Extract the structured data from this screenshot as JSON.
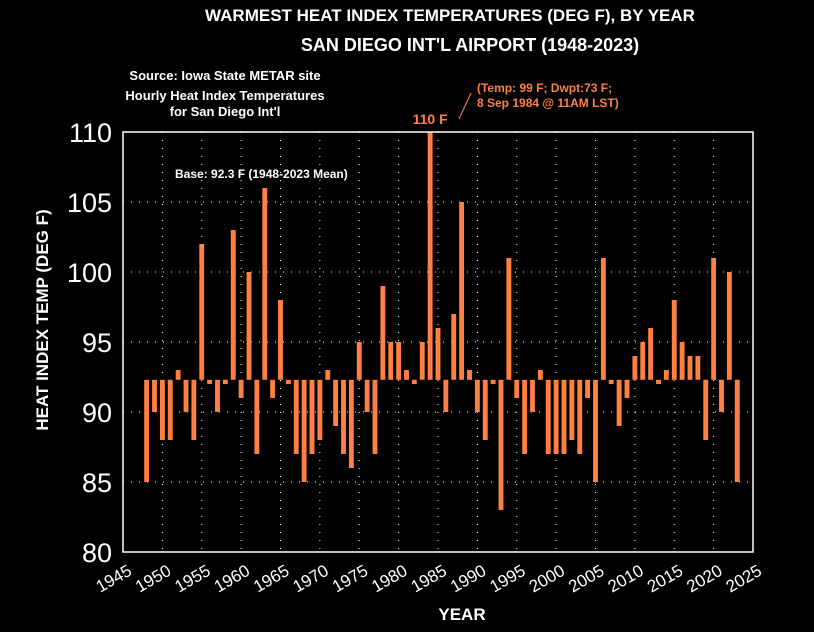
{
  "chart_data": {
    "type": "bar",
    "title": "WARMEST HEAT INDEX TEMPERATURES (DEG F), BY YEAR",
    "subtitle": "SAN DIEGO INT'L AIRPORT (1948-2023)",
    "source_lines": [
      "Source: Iowa State METAR site",
      "Hourly Heat Index Temperatures",
      "for San Diego Int'l"
    ],
    "xlabel": "YEAR",
    "ylabel": "HEAT INDEX TEMP (DEG F)",
    "xlim": [
      1945,
      2025
    ],
    "ylim": [
      80,
      110
    ],
    "xticks": [
      1945,
      1950,
      1955,
      1960,
      1965,
      1970,
      1975,
      1980,
      1985,
      1990,
      1995,
      2000,
      2005,
      2010,
      2015,
      2020,
      2025
    ],
    "yticks": [
      80,
      85,
      90,
      95,
      100,
      105,
      110
    ],
    "grid": "dotted",
    "base": 92.3,
    "base_label": "Base: 92.3 F (1948-2023 Mean)",
    "bar_color": "#ff8040",
    "annotations": {
      "max_label": "110 F",
      "detail_line1": "(Temp: 99 F; Dwpt:73 F;",
      "detail_line2": "8 Sep 1984 @ 11AM LST)"
    },
    "x": [
      1948,
      1949,
      1950,
      1951,
      1952,
      1953,
      1954,
      1955,
      1956,
      1957,
      1958,
      1959,
      1960,
      1961,
      1962,
      1963,
      1964,
      1965,
      1966,
      1967,
      1968,
      1969,
      1970,
      1971,
      1972,
      1973,
      1974,
      1975,
      1976,
      1977,
      1978,
      1979,
      1980,
      1981,
      1982,
      1983,
      1984,
      1985,
      1986,
      1987,
      1988,
      1989,
      1990,
      1991,
      1992,
      1993,
      1994,
      1995,
      1996,
      1997,
      1998,
      1999,
      2000,
      2001,
      2002,
      2003,
      2004,
      2005,
      2006,
      2007,
      2008,
      2009,
      2010,
      2011,
      2012,
      2013,
      2014,
      2015,
      2016,
      2017,
      2018,
      2019,
      2020,
      2021,
      2022,
      2023
    ],
    "values": [
      85,
      90,
      88,
      88,
      93,
      90,
      88,
      102,
      92,
      90,
      92,
      103,
      91,
      100,
      87,
      106,
      91,
      98,
      92,
      87,
      85,
      87,
      88,
      93,
      89,
      87,
      86,
      95,
      90,
      87,
      99,
      95,
      95,
      93,
      92,
      95,
      110,
      96,
      90,
      97,
      105,
      93,
      90,
      88,
      92,
      83,
      101,
      91,
      87,
      90,
      93,
      87,
      87,
      87,
      88,
      87,
      91,
      85,
      101,
      92,
      89,
      91,
      94,
      95,
      96,
      92,
      93,
      98,
      95,
      94,
      94,
      88,
      101,
      90,
      100,
      85
    ]
  }
}
